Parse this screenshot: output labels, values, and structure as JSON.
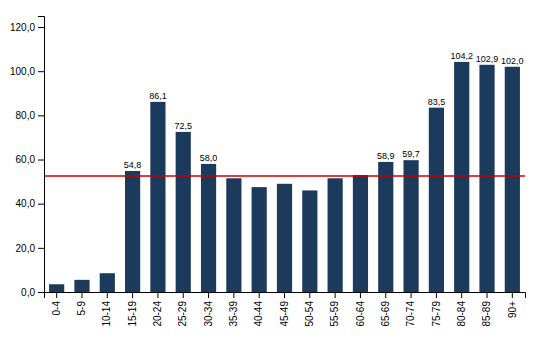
{
  "chart_data": {
    "type": "bar",
    "categories": [
      "0-4",
      "5-9",
      "10-14",
      "15-19",
      "20-24",
      "25-29",
      "30-34",
      "35-39",
      "40-44",
      "45-49",
      "50-54",
      "55-59",
      "60-64",
      "65-69",
      "70-74",
      "75-79",
      "80-84",
      "85-89",
      "90+"
    ],
    "values": [
      3.5,
      5.5,
      8.5,
      54.8,
      86.1,
      72.5,
      58.0,
      51.5,
      47.5,
      49.0,
      46.0,
      51.5,
      53.0,
      58.9,
      59.7,
      83.5,
      104.2,
      102.9,
      102.0
    ],
    "value_labels": [
      null,
      null,
      null,
      "54,8",
      "86,1",
      "72,5",
      "58,0",
      null,
      null,
      null,
      null,
      null,
      null,
      "58,9",
      "59,7",
      "83,5",
      "104,2",
      "102,9",
      "102,0"
    ],
    "data_labels": true,
    "color": "#1b3a5c",
    "reference_line": {
      "y": 52.5,
      "color": "#cc0000"
    },
    "ylim": [
      0,
      125
    ],
    "yticks": [
      {
        "value": 0,
        "label": "0,0"
      },
      {
        "value": 20,
        "label": "20,0"
      },
      {
        "value": 40,
        "label": "40,0"
      },
      {
        "value": 60,
        "label": "60,0"
      },
      {
        "value": 80,
        "label": "80,0"
      },
      {
        "value": 100,
        "label": "100,0"
      },
      {
        "value": 120,
        "label": "120,0"
      }
    ],
    "grid": false
  }
}
